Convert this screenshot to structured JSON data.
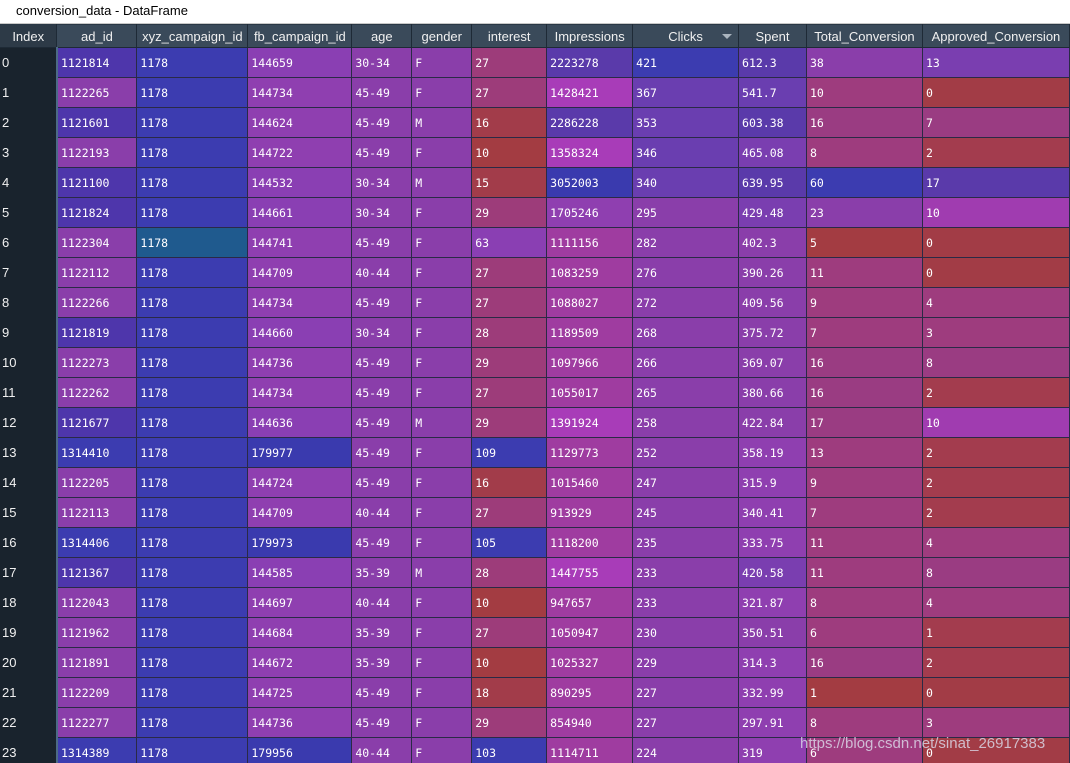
{
  "window": {
    "title": "conversion_data - DataFrame"
  },
  "table": {
    "index_header": "Index",
    "columns": [
      "ad_id",
      "xyz_campaign_id",
      "fb_campaign_id",
      "age",
      "gender",
      "interest",
      "Impressions",
      "Clicks",
      "Spent",
      "Total_Conversion",
      "Approved_Conversion"
    ],
    "sorted_column": "Clicks",
    "sort_direction": "descending",
    "rows": [
      [
        "0",
        "1121814",
        "1178",
        "144659",
        "30-34",
        "F",
        "27",
        "2223278",
        "421",
        "612.3",
        "38",
        "13"
      ],
      [
        "1",
        "1122265",
        "1178",
        "144734",
        "45-49",
        "F",
        "27",
        "1428421",
        "367",
        "541.7",
        "10",
        "0"
      ],
      [
        "2",
        "1121601",
        "1178",
        "144624",
        "45-49",
        "M",
        "16",
        "2286228",
        "353",
        "603.38",
        "16",
        "7"
      ],
      [
        "3",
        "1122193",
        "1178",
        "144722",
        "45-49",
        "F",
        "10",
        "1358324",
        "346",
        "465.08",
        "8",
        "2"
      ],
      [
        "4",
        "1121100",
        "1178",
        "144532",
        "30-34",
        "M",
        "15",
        "3052003",
        "340",
        "639.95",
        "60",
        "17"
      ],
      [
        "5",
        "1121824",
        "1178",
        "144661",
        "30-34",
        "F",
        "29",
        "1705246",
        "295",
        "429.48",
        "23",
        "10"
      ],
      [
        "6",
        "1122304",
        "1178",
        "144741",
        "45-49",
        "F",
        "63",
        "1111156",
        "282",
        "402.3",
        "5",
        "0"
      ],
      [
        "7",
        "1122112",
        "1178",
        "144709",
        "40-44",
        "F",
        "27",
        "1083259",
        "276",
        "390.26",
        "11",
        "0"
      ],
      [
        "8",
        "1122266",
        "1178",
        "144734",
        "45-49",
        "F",
        "27",
        "1088027",
        "272",
        "409.56",
        "9",
        "4"
      ],
      [
        "9",
        "1121819",
        "1178",
        "144660",
        "30-34",
        "F",
        "28",
        "1189509",
        "268",
        "375.72",
        "7",
        "3"
      ],
      [
        "10",
        "1122273",
        "1178",
        "144736",
        "45-49",
        "F",
        "29",
        "1097966",
        "266",
        "369.07",
        "16",
        "8"
      ],
      [
        "11",
        "1122262",
        "1178",
        "144734",
        "45-49",
        "F",
        "27",
        "1055017",
        "265",
        "380.66",
        "16",
        "2"
      ],
      [
        "12",
        "1121677",
        "1178",
        "144636",
        "45-49",
        "M",
        "29",
        "1391924",
        "258",
        "422.84",
        "17",
        "10"
      ],
      [
        "13",
        "1314410",
        "1178",
        "179977",
        "45-49",
        "F",
        "109",
        "1129773",
        "252",
        "358.19",
        "13",
        "2"
      ],
      [
        "14",
        "1122205",
        "1178",
        "144724",
        "45-49",
        "F",
        "16",
        "1015460",
        "247",
        "315.9",
        "9",
        "2"
      ],
      [
        "15",
        "1122113",
        "1178",
        "144709",
        "40-44",
        "F",
        "27",
        "913929",
        "245",
        "340.41",
        "7",
        "2"
      ],
      [
        "16",
        "1314406",
        "1178",
        "179973",
        "45-49",
        "F",
        "105",
        "1118200",
        "235",
        "333.75",
        "11",
        "4"
      ],
      [
        "17",
        "1121367",
        "1178",
        "144585",
        "35-39",
        "M",
        "28",
        "1447755",
        "233",
        "420.58",
        "11",
        "8"
      ],
      [
        "18",
        "1122043",
        "1178",
        "144697",
        "40-44",
        "F",
        "10",
        "947657",
        "233",
        "321.87",
        "8",
        "4"
      ],
      [
        "19",
        "1121962",
        "1178",
        "144684",
        "35-39",
        "F",
        "27",
        "1050947",
        "230",
        "350.51",
        "6",
        "1"
      ],
      [
        "20",
        "1121891",
        "1178",
        "144672",
        "35-39",
        "F",
        "10",
        "1025327",
        "229",
        "314.3",
        "16",
        "2"
      ],
      [
        "21",
        "1122209",
        "1178",
        "144725",
        "45-49",
        "F",
        "18",
        "890295",
        "227",
        "332.99",
        "1",
        "0"
      ],
      [
        "22",
        "1122277",
        "1178",
        "144736",
        "45-49",
        "F",
        "29",
        "854940",
        "227",
        "297.91",
        "8",
        "3"
      ],
      [
        "23",
        "1314389",
        "1178",
        "179956",
        "40-44",
        "F",
        "103",
        "1114711",
        "224",
        "319",
        "6",
        "0"
      ]
    ],
    "cell_colors": [
      [
        "#4e36ab",
        "#3c3cb0",
        "#8a3fb3",
        "#8a3eaa",
        "#8a3eaa",
        "#9d3c7a",
        "#5a3aaa",
        "#3c3cb0",
        "#5a3aaa",
        "#8a3eaa",
        "#7a3eb0"
      ],
      [
        "#8a3eaa",
        "#3c3cb0",
        "#8f3fb0",
        "#8a3eaa",
        "#8a3eaa",
        "#9d3c7a",
        "#a83cb8",
        "#6a3eb0",
        "#6a3eb0",
        "#9e3c7e",
        "#a23c46"
      ],
      [
        "#4e36ab",
        "#3c3cb0",
        "#8f3fb0",
        "#8a3eaa",
        "#8a3eaa",
        "#a23c4a",
        "#5a3aaa",
        "#6a3eb0",
        "#5a3aaa",
        "#9a3c82",
        "#9a3c82"
      ],
      [
        "#8a3eaa",
        "#3c3cb0",
        "#8f3fb0",
        "#8a3eaa",
        "#8a3eaa",
        "#a33c42",
        "#a83cb8",
        "#6a3eb0",
        "#7a3eb0",
        "#9e3c7e",
        "#a33c4e"
      ],
      [
        "#4e36ab",
        "#3c3cb0",
        "#8a3fb3",
        "#8a3eaa",
        "#8a3eaa",
        "#a23c4a",
        "#3a3aae",
        "#6a3eb0",
        "#5a3aaa",
        "#3c3cb0",
        "#5a3aaa"
      ],
      [
        "#4e36ab",
        "#3c3cb0",
        "#8a3fb3",
        "#8a3eaa",
        "#8a3eaa",
        "#9d3c7a",
        "#8f3fb0",
        "#8a3eaa",
        "#7a3eb0",
        "#8a3eaa",
        "#a03cb0"
      ],
      [
        "#8a3eaa",
        "#1f5a8e",
        "#8f3fb0",
        "#8a3eaa",
        "#8a3eaa",
        "#8a3fb3",
        "#9f3ca0",
        "#8a3eaa",
        "#8a3eaa",
        "#a33c42",
        "#a23c46"
      ],
      [
        "#8a3eaa",
        "#3c3cb0",
        "#8f3fb0",
        "#8a3eaa",
        "#8a3eaa",
        "#9d3c7a",
        "#9f3ca0",
        "#8a3eaa",
        "#8a3eaa",
        "#9e3c7e",
        "#a23c46"
      ],
      [
        "#8a3eaa",
        "#3c3cb0",
        "#8f3fb0",
        "#8a3eaa",
        "#8a3eaa",
        "#9d3c7a",
        "#9f3ca0",
        "#8a3eaa",
        "#8a3eaa",
        "#9e3c7e",
        "#9e3c7e"
      ],
      [
        "#4e36ab",
        "#3c3cb0",
        "#8a3fb3",
        "#8a3eaa",
        "#8a3eaa",
        "#9d3c7a",
        "#9f3ca0",
        "#8a3eaa",
        "#8a3eaa",
        "#9e3c7e",
        "#9e3c7e"
      ],
      [
        "#8a3eaa",
        "#3c3cb0",
        "#8f3fb0",
        "#8a3eaa",
        "#8a3eaa",
        "#9d3c7a",
        "#9f3ca0",
        "#8a3eaa",
        "#8a3eaa",
        "#9a3c82",
        "#9a3c82"
      ],
      [
        "#8a3eaa",
        "#3c3cb0",
        "#8f3fb0",
        "#8a3eaa",
        "#8a3eaa",
        "#9d3c7a",
        "#9f3ca0",
        "#8a3eaa",
        "#8a3eaa",
        "#9a3c82",
        "#a33c4e"
      ],
      [
        "#4e36ab",
        "#3c3cb0",
        "#8a3fb3",
        "#8a3eaa",
        "#8a3eaa",
        "#9d3c7a",
        "#a83cb8",
        "#8a3eaa",
        "#8a3eaa",
        "#9a3c82",
        "#a03cb0"
      ],
      [
        "#3c3cb0",
        "#3c3cb0",
        "#3a3aae",
        "#8a3eaa",
        "#8a3eaa",
        "#3c3cb0",
        "#9f3ca0",
        "#8a3eaa",
        "#8f3fb0",
        "#9e3c7e",
        "#a33c4e"
      ],
      [
        "#8a3eaa",
        "#3c3cb0",
        "#8f3fb0",
        "#8a3eaa",
        "#8a3eaa",
        "#a23c4a",
        "#9f3ca0",
        "#8a3eaa",
        "#8f3fb0",
        "#9e3c7e",
        "#a33c4e"
      ],
      [
        "#8a3eaa",
        "#3c3cb0",
        "#8f3fb0",
        "#8a3eaa",
        "#8a3eaa",
        "#9d3c7a",
        "#9f3ca0",
        "#8a3eaa",
        "#8f3fb0",
        "#9e3c7e",
        "#a33c4e"
      ],
      [
        "#3c3cb0",
        "#3c3cb0",
        "#3a3aae",
        "#8a3eaa",
        "#8a3eaa",
        "#3c3cb0",
        "#9f3ca0",
        "#8a3eaa",
        "#8f3fb0",
        "#9e3c7e",
        "#9e3c7e"
      ],
      [
        "#4e36ab",
        "#3c3cb0",
        "#8a3fb3",
        "#8a3eaa",
        "#8a3eaa",
        "#9d3c7a",
        "#a83cb8",
        "#8a3eaa",
        "#7a3eb0",
        "#9e3c7e",
        "#9a3c82"
      ],
      [
        "#8a3eaa",
        "#3c3cb0",
        "#8f3fb0",
        "#8a3eaa",
        "#8a3eaa",
        "#a33c42",
        "#9f3ca0",
        "#8a3eaa",
        "#8f3fb0",
        "#9e3c7e",
        "#9e3c7e"
      ],
      [
        "#8a3eaa",
        "#3c3cb0",
        "#8f3fb0",
        "#8a3eaa",
        "#8a3eaa",
        "#9d3c7a",
        "#9f3ca0",
        "#8a3eaa",
        "#8a3eaa",
        "#9e3c7e",
        "#a33c4e"
      ],
      [
        "#8a3eaa",
        "#3c3cb0",
        "#8f3fb0",
        "#8a3eaa",
        "#8a3eaa",
        "#a33c42",
        "#9f3ca0",
        "#8a3eaa",
        "#8f3fb0",
        "#9a3c82",
        "#a33c4e"
      ],
      [
        "#8a3eaa",
        "#3c3cb0",
        "#8f3fb0",
        "#8a3eaa",
        "#8a3eaa",
        "#a23c4a",
        "#9f3ca0",
        "#8a3eaa",
        "#8f3fb0",
        "#a33c42",
        "#a23c46"
      ],
      [
        "#8a3eaa",
        "#3c3cb0",
        "#8f3fb0",
        "#8a3eaa",
        "#8a3eaa",
        "#9d3c7a",
        "#9f3ca0",
        "#8a3eaa",
        "#8f3fb0",
        "#9e3c7e",
        "#9e3c7e"
      ],
      [
        "#3c3cb0",
        "#3c3cb0",
        "#3a3aae",
        "#8a3eaa",
        "#8a3eaa",
        "#3c3cb0",
        "#9f3ca0",
        "#8a3eaa",
        "#8f3fb0",
        "#9e3c7e",
        "#a23c46"
      ]
    ]
  },
  "watermark": "https://blog.csdn.net/sinat_26917383"
}
